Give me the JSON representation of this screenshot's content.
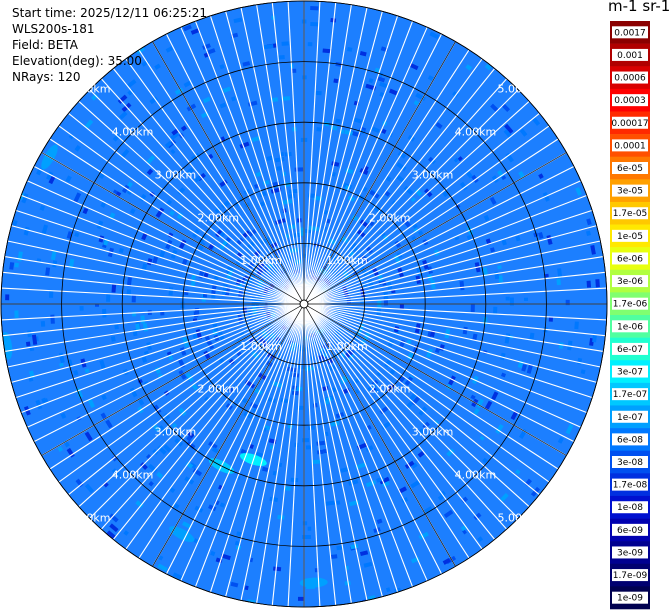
{
  "info": {
    "start_time": "Start time: 2025/12/11 06:25:21",
    "instrument": "WLS200s-181",
    "field": "Field: BETA",
    "elevation": "Elevation(deg): 35.00",
    "nrays": "NRays: 120"
  },
  "chart_data": {
    "type": "heatmap",
    "projection": "polar-ppi",
    "field": "BETA",
    "n_rays": 120,
    "max_range_km": 5.0,
    "range_rings_km": [
      1,
      2,
      3,
      4,
      5
    ],
    "ring_labels": [
      "1.00km",
      "2.00km",
      "3.00km",
      "4.00km",
      "5.00km"
    ],
    "grid": true,
    "colorbar": {
      "title": "m-1 sr-1",
      "position": "right",
      "tick_labels": [
        "0.0017",
        "0.001",
        "0.0006",
        "0.0003",
        "0.00017",
        "0.0001",
        "6e-05",
        "3e-05",
        "1.7e-05",
        "1e-05",
        "6e-06",
        "3e-06",
        "1.7e-06",
        "1e-06",
        "6e-07",
        "3e-07",
        "1.7e-07",
        "1e-07",
        "6e-08",
        "3e-08",
        "1.7e-08",
        "1e-08",
        "6e-09",
        "3e-09",
        "1.7e-09",
        "1e-09"
      ],
      "colors": [
        "#8b0000",
        "#b00000",
        "#d80000",
        "#ff0000",
        "#ff2a00",
        "#ff5000",
        "#ff7800",
        "#ffa000",
        "#ffc800",
        "#ffe800",
        "#e8ff10",
        "#b0ff40",
        "#80ff70",
        "#50ffa0",
        "#20ffd0",
        "#00f0ff",
        "#00c8ff",
        "#00a0ff",
        "#0078ff",
        "#0050f0",
        "#0030e0",
        "#0010d0",
        "#0000b0",
        "#000090",
        "#000070",
        "#000050"
      ]
    },
    "typical_value": "3e-08",
    "background_color": "#1c7fff",
    "enhanced_regions": [
      {
        "azimuth_deg": 300,
        "range_km": 4.85,
        "value": "1e-07"
      },
      {
        "azimuth_deg": 262,
        "range_km": 4.95,
        "value": "1e-07"
      },
      {
        "azimuth_deg": 207,
        "range_km": 3.0,
        "value": "1.7e-07"
      },
      {
        "azimuth_deg": 198,
        "range_km": 2.7,
        "value": "3e-07"
      },
      {
        "azimuth_deg": 208,
        "range_km": 4.3,
        "value": "1e-07"
      },
      {
        "azimuth_deg": 178,
        "range_km": 4.6,
        "value": "1e-07"
      }
    ]
  }
}
